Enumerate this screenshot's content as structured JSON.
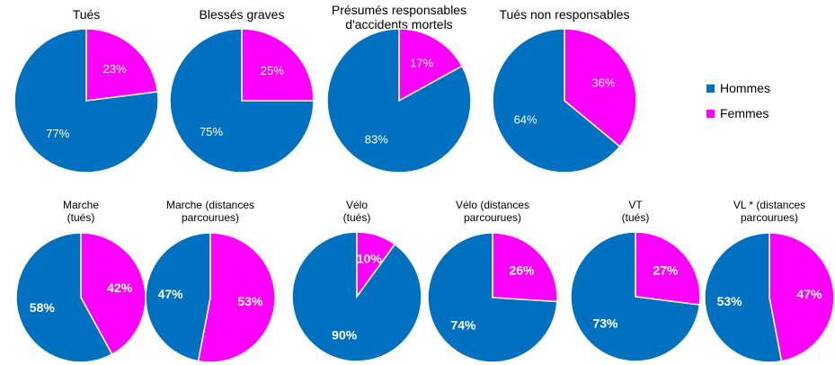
{
  "colors": {
    "hommes": "#0070C0",
    "femmes": "#FF00FF"
  },
  "legend": [
    {
      "label": "Hommes",
      "color": "#0070C0"
    },
    {
      "label": "Femmes",
      "color": "#FF00FF"
    }
  ],
  "chart_data": [
    {
      "type": "pie",
      "title": [
        "Tués"
      ],
      "values": [
        23,
        77
      ],
      "labels": [
        "23%",
        "77%"
      ]
    },
    {
      "type": "pie",
      "title": [
        "Blessés graves"
      ],
      "values": [
        25,
        75
      ],
      "labels": [
        "25%",
        "75%"
      ]
    },
    {
      "type": "pie",
      "title": [
        "Présumés responsables",
        "d'accidents mortels"
      ],
      "values": [
        17,
        83
      ],
      "labels": [
        "17%",
        "83%"
      ]
    },
    {
      "type": "pie",
      "title": [
        "Tués non responsables"
      ],
      "values": [
        36,
        64
      ],
      "labels": [
        "36%",
        "64%"
      ]
    },
    {
      "type": "pie",
      "title": [
        "Marche",
        "(tués)"
      ],
      "values": [
        42,
        58
      ],
      "labels": [
        "42%",
        "58%"
      ]
    },
    {
      "type": "pie",
      "title": [
        "Marche (distances",
        "parcourues)"
      ],
      "values": [
        53,
        47
      ],
      "labels": [
        "53%",
        "47%"
      ]
    },
    {
      "type": "pie",
      "title": [
        "Vélo",
        "(tués)"
      ],
      "values": [
        10,
        90
      ],
      "labels": [
        "10%",
        "90%"
      ]
    },
    {
      "type": "pie",
      "title": [
        "Vélo (distances",
        "parcourues)"
      ],
      "values": [
        26,
        74
      ],
      "labels": [
        "26%",
        "74%"
      ]
    },
    {
      "type": "pie",
      "title": [
        "VT",
        "(tués)"
      ],
      "values": [
        27,
        73
      ],
      "labels": [
        "27%",
        "73%"
      ]
    },
    {
      "type": "pie",
      "title": [
        "VL * (distances",
        "parcourues)"
      ],
      "values": [
        47,
        53
      ],
      "labels": [
        "47%",
        "53%"
      ]
    }
  ]
}
